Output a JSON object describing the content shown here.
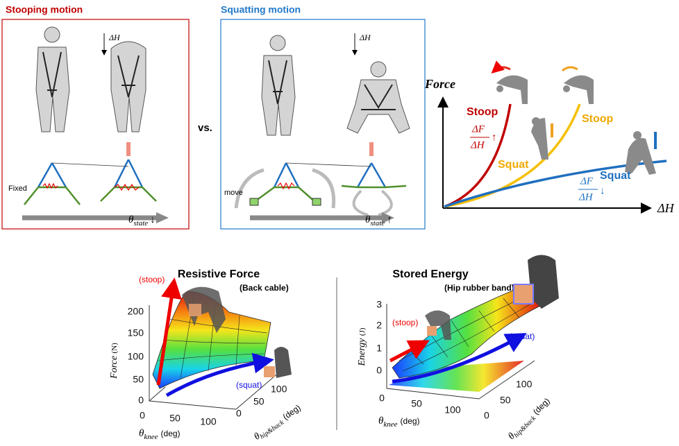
{
  "stoop_panel": {
    "title": "Stooping motion",
    "delta_h": "ΔH",
    "fixed": "Fixed",
    "state": {
      "symbol": "θ",
      "subscript": "state",
      "arrow": "↓"
    }
  },
  "versus": "vs.",
  "squat_panel": {
    "title": "Squatting motion",
    "delta_h": "ΔH",
    "move": "move",
    "state": {
      "symbol": "θ",
      "subscript": "state",
      "arrow": "↑"
    }
  },
  "force_diagram": {
    "y_label": "Force",
    "x_label": "ΔH",
    "stoop_label": "Stoop",
    "stoop_rate": {
      "numerator": "ΔF",
      "denominator": "ΔH",
      "arrow": "↑"
    },
    "squat_yellow_label": "Squat",
    "stoop_yellow_label": "Stoop",
    "squat_label": "Squat",
    "squat_rate": {
      "numerator": "ΔF",
      "denominator": "ΔH",
      "arrow": "↓"
    }
  },
  "resistive_force": {
    "title": "Resistive Force",
    "subtitle": "(Back cable)",
    "stoop": "(stoop)",
    "squat": "(squat)",
    "y_label": {
      "text": "Force",
      "unit": "(N)"
    },
    "yticks": [
      "0",
      "50",
      "100",
      "150",
      "200"
    ],
    "knee_label": {
      "symbol": "θ",
      "subscript": "knee",
      "unit": "(deg)"
    },
    "knee_ticks": [
      "0",
      "50",
      "100"
    ],
    "hip_label": {
      "symbol": "θ",
      "subscript": "hip&back",
      "unit": "(deg)"
    },
    "hip_ticks": [
      "0",
      "50",
      "100"
    ]
  },
  "stored_energy": {
    "title": "Stored Energy",
    "subtitle": "(Hip rubber band)",
    "stoop": "(stoop)",
    "squat": "(squat)",
    "y_label": {
      "text": "Energy",
      "unit": "(J)"
    },
    "yticks": [
      "0",
      "1",
      "2",
      "3"
    ],
    "knee_label": {
      "symbol": "θ",
      "subscript": "knee",
      "unit": "(deg)"
    },
    "knee_ticks": [
      "0",
      "50",
      "100"
    ],
    "hip_label": {
      "symbol": "θ",
      "subscript": "hip&back",
      "unit": "(deg)"
    },
    "hip_ticks": [
      "0",
      "50",
      "100"
    ]
  }
}
